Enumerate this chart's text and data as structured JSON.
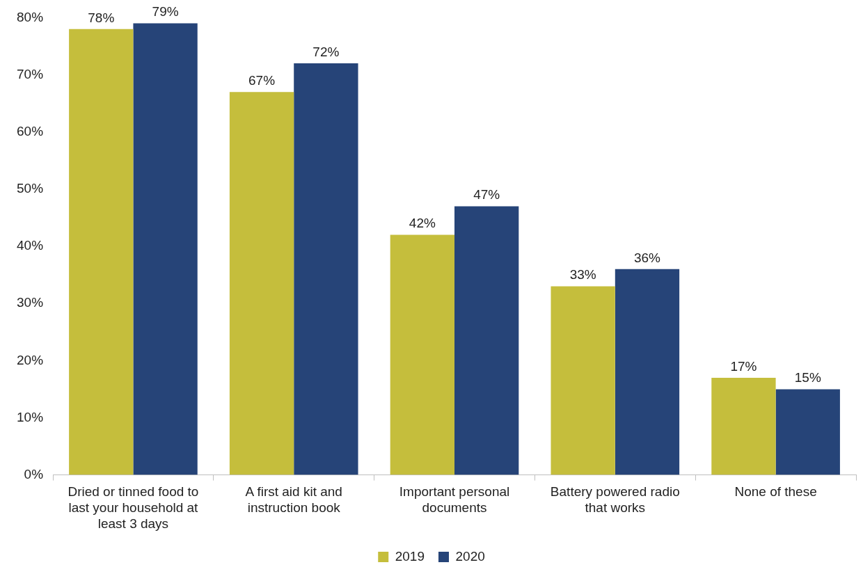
{
  "chart_data": {
    "type": "bar",
    "categories": [
      "Dried or tinned food to last your household at least 3 days",
      "A first aid kit and instruction book",
      "Important personal documents",
      "Battery powered radio that works",
      "None of these"
    ],
    "series": [
      {
        "name": "2019",
        "color": "#c5be3c",
        "values": [
          78,
          67,
          42,
          33,
          17
        ],
        "value_labels": [
          "78%",
          "67%",
          "42%",
          "33%",
          "17%"
        ]
      },
      {
        "name": "2020",
        "color": "#264478",
        "values": [
          79,
          72,
          47,
          36,
          15
        ],
        "value_labels": [
          "79%",
          "72%",
          "47%",
          "36%",
          "15%"
        ]
      }
    ],
    "ylim": [
      0,
      80
    ],
    "yticks": [
      {
        "value": 0,
        "label": "0%"
      },
      {
        "value": 10,
        "label": "10%"
      },
      {
        "value": 20,
        "label": "20%"
      },
      {
        "value": 30,
        "label": "30%"
      },
      {
        "value": 40,
        "label": "40%"
      },
      {
        "value": 50,
        "label": "50%"
      },
      {
        "value": 60,
        "label": "60%"
      },
      {
        "value": 70,
        "label": "70%"
      },
      {
        "value": 80,
        "label": "80%"
      }
    ],
    "grid": false,
    "legend": "bottom"
  }
}
